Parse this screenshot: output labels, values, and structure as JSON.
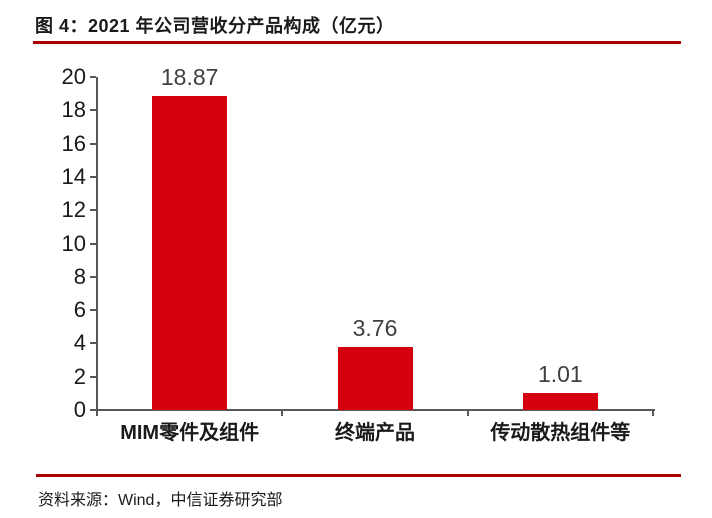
{
  "header": {
    "title": "图 4：2021 年公司营收分产品构成（亿元）"
  },
  "footer": {
    "source": "资料来源：Wind，中信证券研究部"
  },
  "colors": {
    "bar": "#D5000E",
    "divider": "#AB0000",
    "axis": "#58585A",
    "value_label": "#404040",
    "text": "#1A1A1A"
  },
  "chart_data": {
    "type": "bar",
    "title": "2021 年公司营收分产品构成（亿元）",
    "categories": [
      "MIM零件及组件",
      "终端产品",
      "传动散热组件等"
    ],
    "values": [
      18.87,
      3.76,
      1.01
    ],
    "value_labels": [
      "18.87",
      "3.76",
      "1.01"
    ],
    "xlabel": "",
    "ylabel": "",
    "ylim": [
      0,
      20
    ],
    "yticks": [
      0,
      2,
      4,
      6,
      8,
      10,
      12,
      14,
      16,
      18,
      20
    ],
    "grid": false,
    "legend": false,
    "bar_color": "#D5000E"
  }
}
